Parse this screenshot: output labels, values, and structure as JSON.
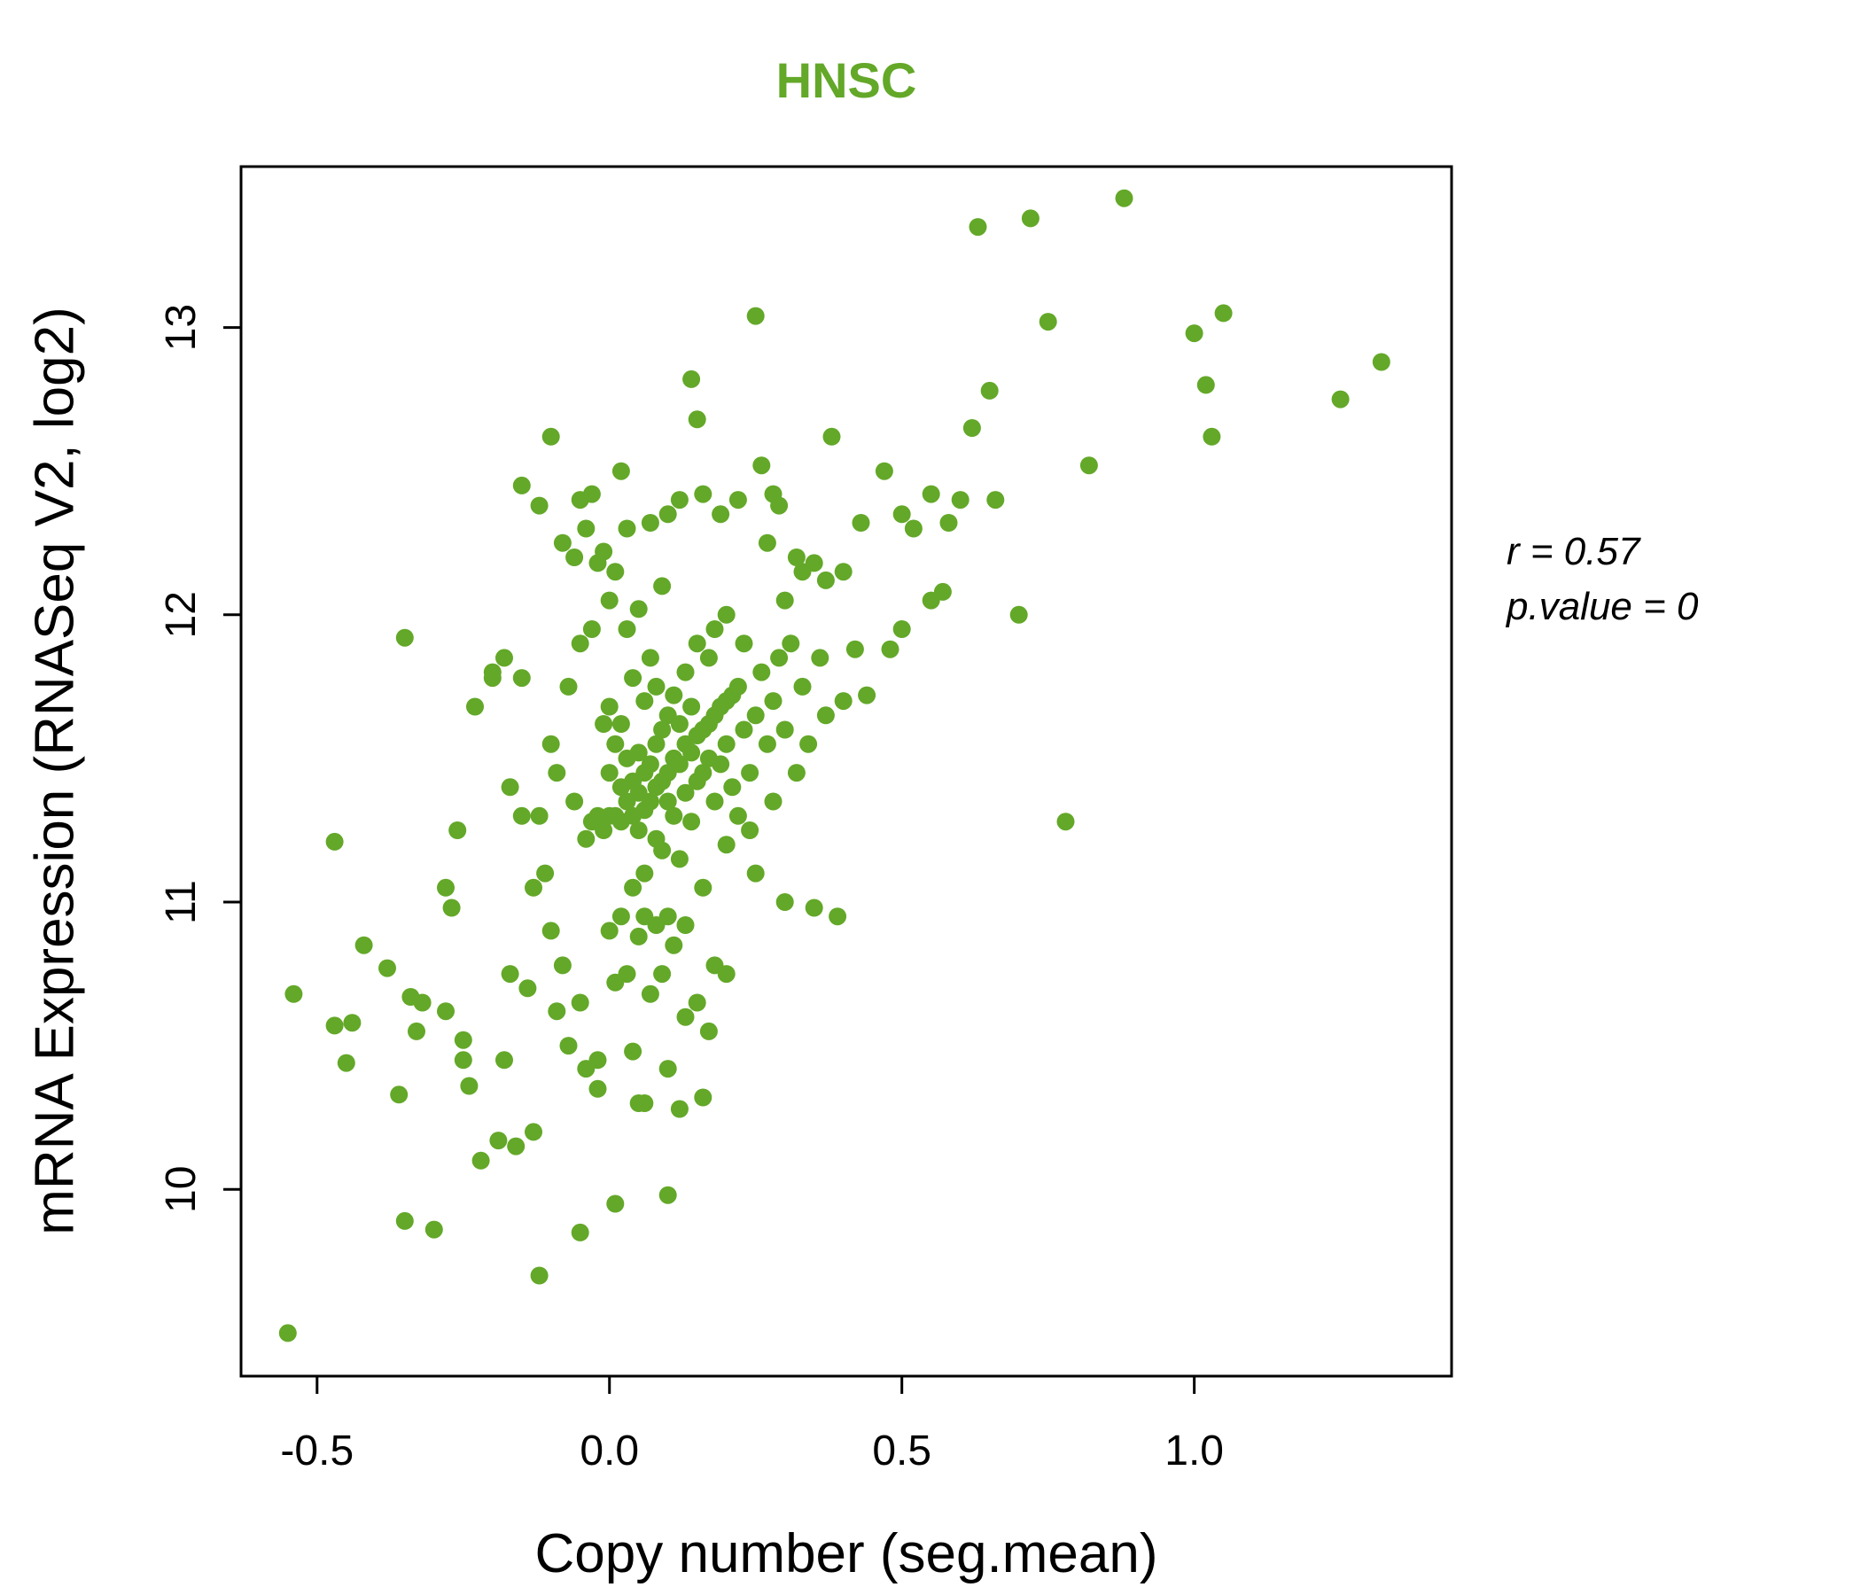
{
  "title": "HNSC",
  "axis": {
    "x_label": "Copy number (seg.mean)",
    "y_label": "mRNA Expression (RNASeq V2, log2)"
  },
  "annotation": {
    "line1": "r = 0.57",
    "line2": "p.value = 0"
  },
  "chart_data": {
    "type": "scatter",
    "title": "HNSC",
    "title_color": "#63A828",
    "point_color": "#63A828",
    "xlabel": "Copy number (seg.mean)",
    "ylabel": "mRNA Expression (RNASeq V2, log2)",
    "xlim": [
      -0.63,
      1.44
    ],
    "ylim": [
      9.35,
      13.56
    ],
    "xticks": [
      -0.5,
      0.0,
      0.5,
      1.0
    ],
    "xtick_labels": [
      "-0.5",
      "0.0",
      "0.5",
      "1.0"
    ],
    "yticks": [
      10,
      11,
      12,
      13
    ],
    "ytick_labels": [
      "10",
      "11",
      "12",
      "13"
    ],
    "grid": false,
    "legend": "none",
    "correlation_r": 0.57,
    "p_value": 0,
    "points": [
      [
        -0.55,
        9.5
      ],
      [
        -0.54,
        10.68
      ],
      [
        -0.47,
        10.57
      ],
      [
        -0.47,
        11.21
      ],
      [
        -0.45,
        10.44
      ],
      [
        -0.44,
        10.58
      ],
      [
        -0.42,
        10.85
      ],
      [
        -0.38,
        10.77
      ],
      [
        -0.36,
        10.33
      ],
      [
        -0.35,
        9.89
      ],
      [
        -0.35,
        11.92
      ],
      [
        -0.34,
        10.67
      ],
      [
        -0.33,
        10.55
      ],
      [
        -0.32,
        10.65
      ],
      [
        -0.3,
        9.86
      ],
      [
        -0.28,
        10.62
      ],
      [
        -0.28,
        11.05
      ],
      [
        -0.27,
        10.98
      ],
      [
        -0.26,
        11.25
      ],
      [
        -0.25,
        10.45
      ],
      [
        -0.25,
        10.52
      ],
      [
        -0.24,
        10.36
      ],
      [
        -0.23,
        11.68
      ],
      [
        -0.22,
        10.1
      ],
      [
        -0.2,
        11.8
      ],
      [
        -0.2,
        11.78
      ],
      [
        -0.19,
        10.17
      ],
      [
        -0.18,
        11.85
      ],
      [
        -0.18,
        10.45
      ],
      [
        -0.17,
        10.75
      ],
      [
        -0.17,
        11.4
      ],
      [
        -0.16,
        10.15
      ],
      [
        -0.15,
        12.45
      ],
      [
        -0.15,
        11.78
      ],
      [
        -0.15,
        11.3
      ],
      [
        -0.14,
        10.7
      ],
      [
        -0.13,
        11.05
      ],
      [
        -0.13,
        10.2
      ],
      [
        -0.12,
        9.7
      ],
      [
        -0.12,
        11.3
      ],
      [
        -0.12,
        12.38
      ],
      [
        -0.11,
        11.1
      ],
      [
        -0.1,
        10.9
      ],
      [
        -0.1,
        11.55
      ],
      [
        -0.1,
        12.62
      ],
      [
        -0.09,
        10.62
      ],
      [
        -0.09,
        11.45
      ],
      [
        -0.08,
        10.78
      ],
      [
        -0.08,
        12.25
      ],
      [
        -0.07,
        11.75
      ],
      [
        -0.07,
        10.5
      ],
      [
        -0.06,
        12.2
      ],
      [
        -0.06,
        11.35
      ],
      [
        -0.05,
        9.85
      ],
      [
        -0.05,
        11.9
      ],
      [
        -0.05,
        12.4
      ],
      [
        -0.05,
        10.65
      ],
      [
        -0.04,
        11.22
      ],
      [
        -0.04,
        12.3
      ],
      [
        -0.04,
        10.42
      ],
      [
        -0.03,
        11.28
      ],
      [
        -0.03,
        11.95
      ],
      [
        -0.03,
        12.42
      ],
      [
        -0.02,
        11.3
      ],
      [
        -0.02,
        12.18
      ],
      [
        -0.02,
        10.35
      ],
      [
        -0.02,
        10.45
      ],
      [
        -0.01,
        11.25
      ],
      [
        -0.01,
        11.62
      ],
      [
        -0.01,
        12.22
      ],
      [
        0,
        11.3
      ],
      [
        0,
        11.45
      ],
      [
        0,
        10.9
      ],
      [
        0,
        12.05
      ],
      [
        0,
        11.68
      ],
      [
        0.01,
        11.3
      ],
      [
        0.01,
        11.55
      ],
      [
        0.01,
        12.15
      ],
      [
        0.01,
        10.72
      ],
      [
        0.01,
        9.95
      ],
      [
        0.02,
        11.28
      ],
      [
        0.02,
        11.4
      ],
      [
        0.02,
        11.62
      ],
      [
        0.02,
        10.95
      ],
      [
        0.02,
        12.5
      ],
      [
        0.03,
        11.35
      ],
      [
        0.03,
        11.5
      ],
      [
        0.03,
        10.75
      ],
      [
        0.03,
        11.95
      ],
      [
        0.03,
        12.3
      ],
      [
        0.04,
        11.3
      ],
      [
        0.04,
        11.42
      ],
      [
        0.04,
        11.05
      ],
      [
        0.04,
        11.78
      ],
      [
        0.04,
        10.48
      ],
      [
        0.05,
        11.38
      ],
      [
        0.05,
        11.52
      ],
      [
        0.05,
        11.25
      ],
      [
        0.05,
        10.88
      ],
      [
        0.05,
        12.02
      ],
      [
        0.05,
        10.3
      ],
      [
        0.06,
        11.45
      ],
      [
        0.06,
        11.32
      ],
      [
        0.06,
        11.7
      ],
      [
        0.06,
        10.95
      ],
      [
        0.06,
        11.1
      ],
      [
        0.06,
        10.3
      ],
      [
        0.07,
        11.48
      ],
      [
        0.07,
        11.35
      ],
      [
        0.07,
        11.85
      ],
      [
        0.07,
        10.68
      ],
      [
        0.07,
        12.32
      ],
      [
        0.08,
        11.4
      ],
      [
        0.08,
        11.55
      ],
      [
        0.08,
        11.22
      ],
      [
        0.08,
        10.92
      ],
      [
        0.08,
        11.75
      ],
      [
        0.09,
        11.42
      ],
      [
        0.09,
        11.6
      ],
      [
        0.09,
        11.18
      ],
      [
        0.09,
        10.75
      ],
      [
        0.09,
        12.1
      ],
      [
        0.1,
        11.45
      ],
      [
        0.1,
        11.35
      ],
      [
        0.1,
        11.65
      ],
      [
        0.1,
        10.95
      ],
      [
        0.1,
        9.98
      ],
      [
        0.1,
        12.35
      ],
      [
        0.1,
        10.42
      ],
      [
        0.11,
        11.5
      ],
      [
        0.11,
        11.3
      ],
      [
        0.11,
        11.72
      ],
      [
        0.11,
        10.85
      ],
      [
        0.12,
        11.48
      ],
      [
        0.12,
        11.62
      ],
      [
        0.12,
        11.15
      ],
      [
        0.12,
        10.28
      ],
      [
        0.12,
        12.4
      ],
      [
        0.13,
        11.55
      ],
      [
        0.13,
        11.38
      ],
      [
        0.13,
        11.8
      ],
      [
        0.13,
        10.92
      ],
      [
        0.13,
        10.6
      ],
      [
        0.14,
        11.52
      ],
      [
        0.14,
        11.68
      ],
      [
        0.14,
        11.28
      ],
      [
        0.14,
        12.82
      ],
      [
        0.15,
        11.58
      ],
      [
        0.15,
        11.42
      ],
      [
        0.15,
        11.9
      ],
      [
        0.15,
        10.65
      ],
      [
        0.15,
        12.68
      ],
      [
        0.16,
        11.6
      ],
      [
        0.16,
        11.45
      ],
      [
        0.16,
        11.05
      ],
      [
        0.16,
        12.42
      ],
      [
        0.16,
        10.32
      ],
      [
        0.17,
        11.62
      ],
      [
        0.17,
        11.5
      ],
      [
        0.17,
        11.85
      ],
      [
        0.17,
        10.55
      ],
      [
        0.18,
        11.65
      ],
      [
        0.18,
        11.35
      ],
      [
        0.18,
        11.95
      ],
      [
        0.18,
        10.78
      ],
      [
        0.19,
        11.68
      ],
      [
        0.19,
        11.48
      ],
      [
        0.19,
        12.35
      ],
      [
        0.2,
        11.7
      ],
      [
        0.2,
        11.55
      ],
      [
        0.2,
        11.2
      ],
      [
        0.2,
        12.0
      ],
      [
        0.2,
        10.75
      ],
      [
        0.21,
        11.72
      ],
      [
        0.21,
        11.4
      ],
      [
        0.22,
        11.75
      ],
      [
        0.22,
        11.3
      ],
      [
        0.22,
        12.4
      ],
      [
        0.23,
        11.6
      ],
      [
        0.23,
        11.9
      ],
      [
        0.24,
        11.45
      ],
      [
        0.24,
        11.25
      ],
      [
        0.25,
        11.65
      ],
      [
        0.25,
        11.1
      ],
      [
        0.25,
        13.04
      ],
      [
        0.26,
        11.8
      ],
      [
        0.26,
        12.52
      ],
      [
        0.27,
        11.55
      ],
      [
        0.27,
        12.25
      ],
      [
        0.28,
        11.7
      ],
      [
        0.28,
        12.42
      ],
      [
        0.28,
        11.35
      ],
      [
        0.29,
        11.85
      ],
      [
        0.29,
        12.38
      ],
      [
        0.3,
        11.6
      ],
      [
        0.3,
        12.05
      ],
      [
        0.3,
        11.0
      ],
      [
        0.31,
        11.9
      ],
      [
        0.32,
        12.2
      ],
      [
        0.32,
        11.45
      ],
      [
        0.33,
        12.15
      ],
      [
        0.33,
        11.75
      ],
      [
        0.34,
        11.55
      ],
      [
        0.35,
        12.18
      ],
      [
        0.35,
        10.98
      ],
      [
        0.36,
        11.85
      ],
      [
        0.37,
        12.12
      ],
      [
        0.37,
        11.65
      ],
      [
        0.38,
        12.62
      ],
      [
        0.39,
        10.95
      ],
      [
        0.4,
        11.7
      ],
      [
        0.4,
        12.15
      ],
      [
        0.42,
        11.88
      ],
      [
        0.43,
        12.32
      ],
      [
        0.44,
        11.72
      ],
      [
        0.47,
        12.5
      ],
      [
        0.48,
        11.88
      ],
      [
        0.5,
        12.35
      ],
      [
        0.5,
        11.95
      ],
      [
        0.52,
        12.3
      ],
      [
        0.55,
        12.05
      ],
      [
        0.55,
        12.42
      ],
      [
        0.57,
        12.08
      ],
      [
        0.58,
        12.32
      ],
      [
        0.6,
        12.4
      ],
      [
        0.62,
        12.65
      ],
      [
        0.63,
        13.35
      ],
      [
        0.65,
        12.78
      ],
      [
        0.66,
        12.4
      ],
      [
        0.7,
        12.0
      ],
      [
        0.72,
        13.38
      ],
      [
        0.75,
        13.02
      ],
      [
        0.78,
        11.28
      ],
      [
        0.82,
        12.52
      ],
      [
        0.88,
        13.45
      ],
      [
        1.0,
        12.98
      ],
      [
        1.02,
        12.8
      ],
      [
        1.03,
        12.62
      ],
      [
        1.05,
        13.05
      ],
      [
        1.25,
        12.75
      ],
      [
        1.32,
        12.88
      ]
    ]
  }
}
